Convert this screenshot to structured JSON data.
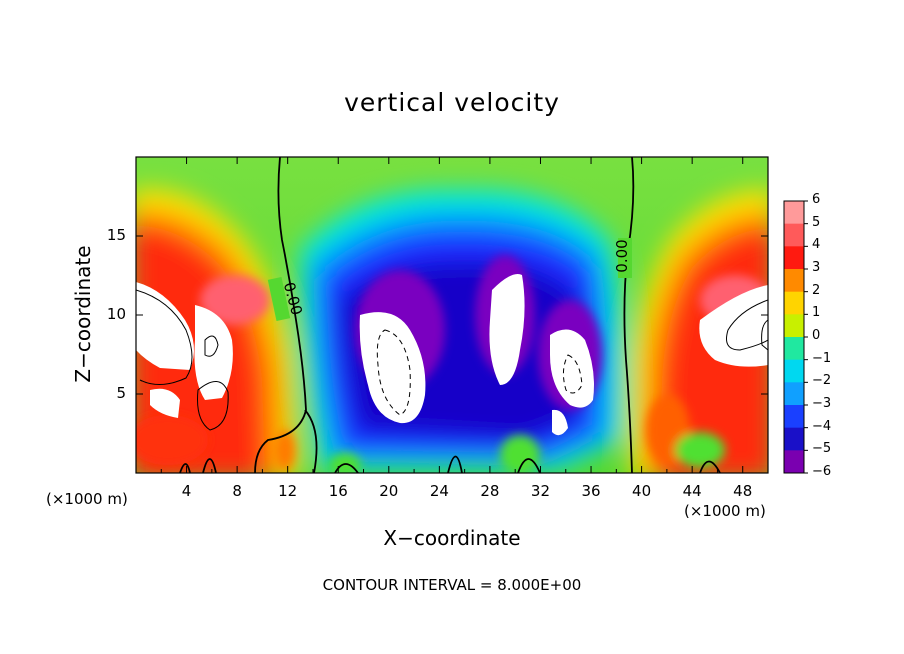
{
  "chart_data": {
    "type": "heatmap",
    "title": "vertical velocity",
    "xlabel": "X−coordinate",
    "ylabel": "Z−coordinate",
    "x_unit_label": "(×1000 m)",
    "x_ticks": [
      4,
      8,
      12,
      16,
      20,
      24,
      28,
      32,
      36,
      40,
      44,
      48
    ],
    "y_ticks": [
      5,
      10,
      15
    ],
    "xlim": [
      0,
      50
    ],
    "ylim": [
      0,
      20
    ],
    "colorbar": {
      "levels": [
        6,
        5,
        4,
        3,
        2,
        1,
        0,
        -1,
        -2,
        -3,
        -4,
        -5,
        -6
      ],
      "labels": [
        "6",
        "5",
        "4",
        "3",
        "2",
        "1",
        "0",
        "−1",
        "−2",
        "−3",
        "−4",
        "−5",
        "−6"
      ],
      "vmin": -6,
      "vmax": 6
    },
    "contour_labels": [
      {
        "text": "0.00",
        "x": 12.2,
        "y": 11.0
      },
      {
        "text": "0.00",
        "x": 38.8,
        "y": 13.7
      }
    ],
    "annotation": "CONTOUR INTERVAL = 8.000E+00"
  }
}
